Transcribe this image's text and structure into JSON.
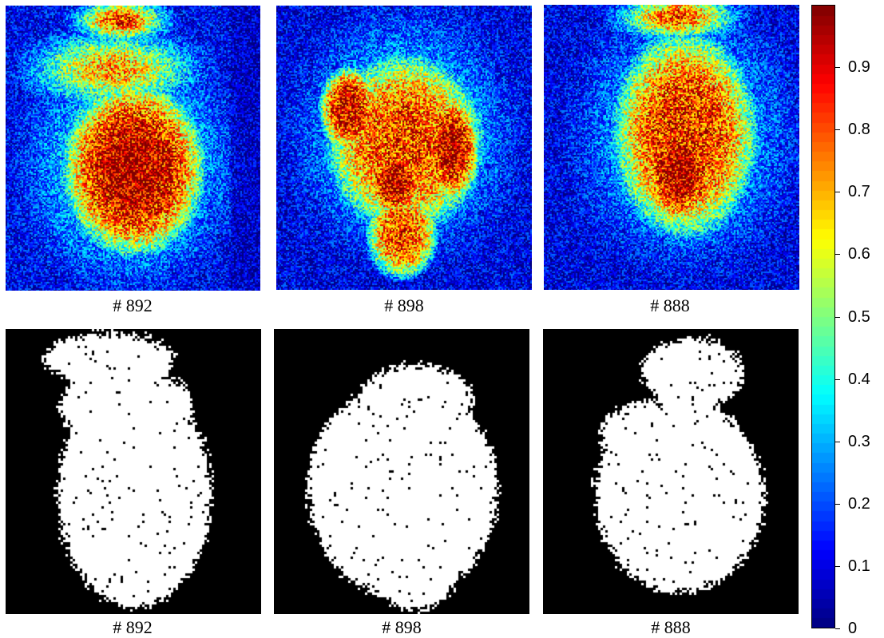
{
  "figure": {
    "heatmap_panels": [
      {
        "label": "# 892"
      },
      {
        "label": "# 898"
      },
      {
        "label": "# 888"
      }
    ],
    "binary_panels": [
      {
        "label": "# 892"
      },
      {
        "label": "# 898"
      },
      {
        "label": "# 888"
      }
    ]
  },
  "colorbar": {
    "colormap": "jet",
    "range": [
      0,
      1
    ],
    "ticks": [
      "0",
      "0.1",
      "0.2",
      "0.3",
      "0.4",
      "0.5",
      "0.6",
      "0.7",
      "0.8",
      "0.9"
    ]
  },
  "colors": {
    "background": "#ffffff",
    "mask_foreground": "#ffffff",
    "mask_background": "#000000"
  }
}
